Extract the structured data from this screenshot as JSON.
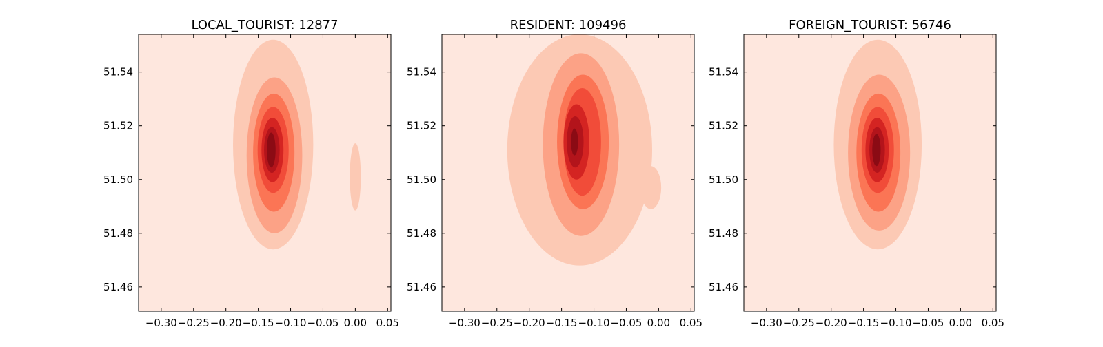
{
  "chart_data": [
    {
      "type": "contour",
      "title": "LOCAL_TOURIST: 12877",
      "xticks": [
        "−0.30",
        "−0.25",
        "−0.20",
        "−0.15",
        "−0.10",
        "−0.05",
        "0.00",
        "0.05"
      ],
      "xtick_values": [
        -0.3,
        -0.25,
        -0.2,
        -0.15,
        -0.1,
        -0.05,
        0.0,
        0.05
      ],
      "yticks": [
        "51.46",
        "51.48",
        "51.50",
        "51.52",
        "51.54"
      ],
      "ytick_values": [
        51.46,
        51.48,
        51.5,
        51.52,
        51.54
      ],
      "xlim": [
        -0.335,
        0.055
      ],
      "ylim": [
        51.451,
        51.554
      ],
      "peak": {
        "x": -0.13,
        "y": 51.511
      },
      "secondary_peak": {
        "x": 0.0,
        "y": 51.501
      },
      "levels": 7,
      "colormap": "Reds"
    },
    {
      "type": "contour",
      "title": "RESIDENT: 109496",
      "xticks": [
        "−0.30",
        "−0.25",
        "−0.20",
        "−0.15",
        "−0.10",
        "−0.05",
        "0.00",
        "0.05"
      ],
      "xtick_values": [
        -0.3,
        -0.25,
        -0.2,
        -0.15,
        -0.1,
        -0.05,
        0.0,
        0.05
      ],
      "yticks": [
        "51.46",
        "51.48",
        "51.50",
        "51.52",
        "51.54"
      ],
      "ytick_values": [
        51.46,
        51.48,
        51.5,
        51.52,
        51.54
      ],
      "xlim": [
        -0.335,
        0.055
      ],
      "ylim": [
        51.451,
        51.554
      ],
      "peak": {
        "x": -0.13,
        "y": 51.514
      },
      "levels": 7,
      "colormap": "Reds"
    },
    {
      "type": "contour",
      "title": "FOREIGN_TOURIST: 56746",
      "xticks": [
        "−0.30",
        "−0.25",
        "−0.20",
        "−0.15",
        "−0.10",
        "−0.05",
        "0.00",
        "0.05"
      ],
      "xtick_values": [
        -0.3,
        -0.25,
        -0.2,
        -0.15,
        -0.1,
        -0.05,
        0.0,
        0.05
      ],
      "yticks": [
        "51.46",
        "51.48",
        "51.50",
        "51.52",
        "51.54"
      ],
      "ytick_values": [
        51.46,
        51.48,
        51.5,
        51.52,
        51.54
      ],
      "xlim": [
        -0.335,
        0.055
      ],
      "ylim": [
        51.451,
        51.554
      ],
      "peak": {
        "x": -0.13,
        "y": 51.511
      },
      "levels": 7,
      "colormap": "Reds"
    }
  ],
  "colors": {
    "level_fills": [
      "#fee7de",
      "#fcc9b4",
      "#fca286",
      "#fb7555",
      "#f14c39",
      "#d42422",
      "#b3141b",
      "#8b0b14"
    ]
  }
}
